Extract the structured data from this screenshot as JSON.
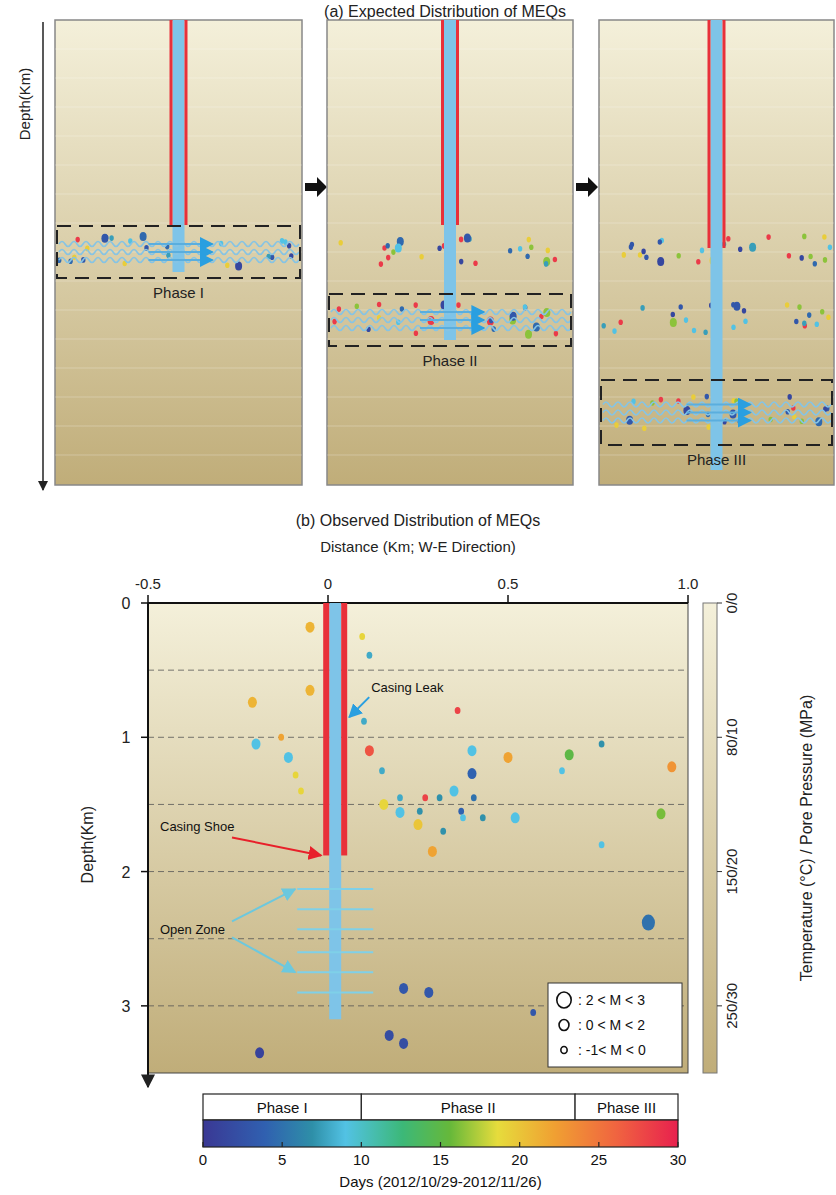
{
  "diagram": {
    "title": "(a) Expected Distribution of MEQs",
    "y_label": "Depth(Km)",
    "panels": [
      {
        "label": "Phase I"
      },
      {
        "label": "Phase II"
      },
      {
        "label": "Phase III"
      }
    ]
  },
  "chart_data": {
    "type": "scatter",
    "title": "(b) Observed Distribution of MEQs",
    "x_label": "Distance (Km; W-E Direction)",
    "y_label": "Depth(Km)",
    "xlim": [
      -0.5,
      1.0
    ],
    "xticks": [
      -0.5,
      0,
      0.5,
      {
        "value": 1.0,
        "label": "1.0"
      }
    ],
    "ylim": [
      0,
      3.5
    ],
    "yticks": [
      0,
      1,
      2,
      3
    ],
    "depth_grid": [
      0.5,
      1,
      1.5,
      2,
      2.5,
      3
    ],
    "x": [
      -0.05,
      0.095,
      0.115,
      -0.21,
      -0.05,
      0.36,
      0.1,
      -0.13,
      -0.2,
      0.115,
      -0.11,
      -0.09,
      -0.075,
      0.15,
      0.2,
      0.27,
      0.31,
      0.155,
      0.2,
      0.255,
      0.35,
      0.37,
      0.405,
      0.4,
      0.4,
      0.25,
      0.29,
      0.32,
      0.375,
      0.43,
      0.52,
      0.5,
      0.67,
      0.65,
      0.76,
      0.955,
      0.925,
      0.76,
      0.89,
      0.21,
      0.28,
      0.17,
      0.21,
      0.57,
      -0.19
    ],
    "values": [
      0.18,
      0.25,
      0.39,
      0.74,
      0.65,
      0.8,
      0.88,
      1.0,
      1.05,
      1.1,
      1.15,
      1.28,
      1.4,
      1.25,
      1.45,
      1.45,
      1.45,
      1.5,
      1.56,
      1.55,
      1.4,
      1.55,
      1.45,
      1.27,
      1.1,
      1.65,
      1.85,
      1.7,
      1.6,
      1.6,
      1.6,
      1.15,
      1.13,
      1.25,
      1.05,
      1.22,
      1.57,
      1.8,
      2.38,
      2.87,
      2.9,
      3.22,
      3.28,
      3.05,
      3.35
    ],
    "day": [
      21,
      19,
      8,
      21,
      21,
      28,
      8,
      22,
      9,
      27,
      9,
      19,
      19,
      8,
      8,
      28,
      7,
      19,
      9,
      7,
      9,
      4,
      5,
      4,
      9,
      20,
      22,
      7,
      9,
      7,
      9,
      22,
      15,
      9,
      7,
      23,
      16,
      9,
      5,
      3,
      3,
      2,
      2,
      3,
      1
    ],
    "magnitude": [
      1,
      -0.5,
      -0.5,
      1,
      1,
      -0.5,
      -0.5,
      -0.5,
      1,
      1,
      1,
      -0.5,
      -0.5,
      -0.5,
      -0.5,
      -0.5,
      -0.5,
      1,
      1,
      -0.5,
      1,
      -0.5,
      -0.5,
      1,
      1,
      1,
      1,
      -0.5,
      -0.5,
      -0.5,
      1,
      1,
      1,
      -0.5,
      -0.5,
      1,
      1,
      -0.5,
      2.5,
      1,
      1,
      1,
      1,
      -0.5,
      1
    ],
    "size_legend": [
      {
        "label": ": 2 < M < 3",
        "min": 2,
        "max": 3
      },
      {
        "label": ": 0 < M < 2",
        "min": 0,
        "max": 2
      },
      {
        "label": ": -1< M < 0",
        "min": -1,
        "max": 0
      }
    ],
    "colorbar": {
      "label": "Days (2012/10/29-2012/11/26)",
      "range": [
        0,
        30
      ],
      "ticks": [
        0,
        5,
        10,
        15,
        20,
        25,
        30
      ],
      "phases": [
        {
          "name": "Phase I",
          "start": 0,
          "end": 10
        },
        {
          "name": "Phase II",
          "start": 10,
          "end": 23.5
        },
        {
          "name": "Phase III",
          "start": 23.5,
          "end": 30
        }
      ]
    },
    "y2_label": "Temperature (°C) / Pore Pressure (MPa)",
    "y2lim": [
      0,
      3.5
    ],
    "y2ticks": [
      {
        "value": 0,
        "label": "0/0"
      },
      {
        "value": 1,
        "label": "80/10"
      },
      {
        "value": 2,
        "label": "150/20"
      },
      {
        "value": 3,
        "label": "250/30"
      }
    ],
    "well": {
      "x": 0.02,
      "casing_leak_depth": 0.85,
      "casing_shoe_depth": 1.88,
      "bottom_depth": 3.1,
      "open_zone_depths": [
        2.13,
        2.28,
        2.43,
        2.6,
        2.75,
        2.9
      ]
    },
    "annotations": [
      {
        "text": "Casing Leak"
      },
      {
        "text": "Casing Shoe"
      },
      {
        "text": "Open Zone"
      }
    ]
  }
}
